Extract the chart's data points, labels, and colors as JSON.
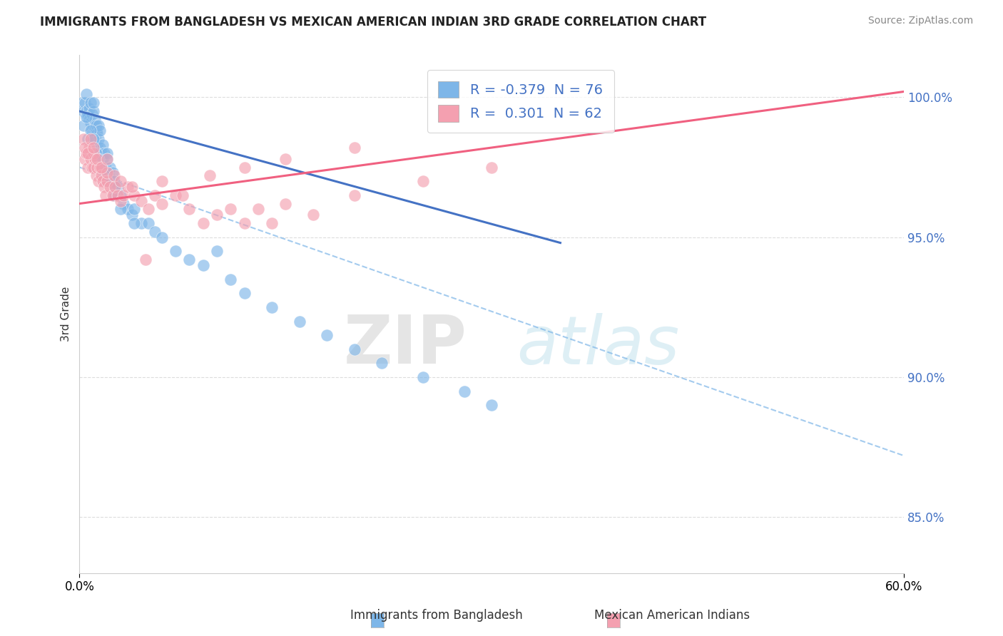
{
  "title": "IMMIGRANTS FROM BANGLADESH VS MEXICAN AMERICAN INDIAN 3RD GRADE CORRELATION CHART",
  "source": "Source: ZipAtlas.com",
  "xlabel_blue": "Immigrants from Bangladesh",
  "xlabel_pink": "Mexican American Indians",
  "ylabel": "3rd Grade",
  "watermark_zip": "ZIP",
  "watermark_atlas": "atlas",
  "xlim": [
    0.0,
    60.0
  ],
  "ylim": [
    83.0,
    101.5
  ],
  "yticks": [
    85.0,
    90.0,
    95.0,
    100.0
  ],
  "ytick_labels": [
    "85.0%",
    "90.0%",
    "95.0%",
    "100.0%"
  ],
  "xtick_labels": [
    "0.0%",
    "60.0%"
  ],
  "legend_blue_r": "-0.379",
  "legend_blue_n": "76",
  "legend_pink_r": "0.301",
  "legend_pink_n": "62",
  "blue_color": "#7EB6E8",
  "pink_color": "#F4A0B0",
  "blue_line_color": "#4472C4",
  "pink_line_color": "#F06080",
  "dashed_line_color": "#7EB6E8",
  "background_color": "#FFFFFF",
  "grid_color": "#DDDDDD",
  "blue_x": [
    0.2,
    0.3,
    0.4,
    0.5,
    0.5,
    0.6,
    0.7,
    0.7,
    0.8,
    0.8,
    0.9,
    0.9,
    1.0,
    1.0,
    1.0,
    1.1,
    1.1,
    1.2,
    1.2,
    1.3,
    1.3,
    1.4,
    1.4,
    1.5,
    1.5,
    1.6,
    1.7,
    1.7,
    1.8,
    1.9,
    2.0,
    2.0,
    2.1,
    2.2,
    2.3,
    2.4,
    2.5,
    2.6,
    2.7,
    2.8,
    3.0,
    3.2,
    3.5,
    3.8,
    4.0,
    4.5,
    5.0,
    5.5,
    6.0,
    7.0,
    8.0,
    9.0,
    10.0,
    11.0,
    12.0,
    14.0,
    16.0,
    18.0,
    20.0,
    22.0,
    25.0,
    28.0,
    30.0,
    0.3,
    0.5,
    0.6,
    0.8,
    1.0,
    1.2,
    1.4,
    1.6,
    1.8,
    2.0,
    2.5,
    3.0,
    4.0
  ],
  "blue_y": [
    99.8,
    99.5,
    99.8,
    99.5,
    100.1,
    99.3,
    99.6,
    99.2,
    99.8,
    99.1,
    98.8,
    99.4,
    99.0,
    99.5,
    99.8,
    98.5,
    99.2,
    98.8,
    99.0,
    98.3,
    98.7,
    98.5,
    99.0,
    98.2,
    98.8,
    98.0,
    97.8,
    98.3,
    98.0,
    97.5,
    98.0,
    97.8,
    97.2,
    97.5,
    97.0,
    97.3,
    97.0,
    96.8,
    96.5,
    96.8,
    96.5,
    96.2,
    96.0,
    95.8,
    96.0,
    95.5,
    95.5,
    95.2,
    95.0,
    94.5,
    94.2,
    94.0,
    94.5,
    93.5,
    93.0,
    92.5,
    92.0,
    91.5,
    91.0,
    90.5,
    90.0,
    89.5,
    89.0,
    99.0,
    99.3,
    98.5,
    98.8,
    98.5,
    98.0,
    97.8,
    97.5,
    97.2,
    97.0,
    96.5,
    96.0,
    95.5
  ],
  "pink_x": [
    0.3,
    0.4,
    0.5,
    0.6,
    0.7,
    0.8,
    0.9,
    1.0,
    1.0,
    1.1,
    1.2,
    1.3,
    1.4,
    1.5,
    1.6,
    1.7,
    1.8,
    1.9,
    2.0,
    2.0,
    2.2,
    2.4,
    2.6,
    2.8,
    3.0,
    3.2,
    3.5,
    4.0,
    4.5,
    5.0,
    5.5,
    6.0,
    7.0,
    8.0,
    9.0,
    10.0,
    11.0,
    12.0,
    13.0,
    14.0,
    15.0,
    17.0,
    20.0,
    25.0,
    30.0,
    0.4,
    0.6,
    0.8,
    1.0,
    1.3,
    1.6,
    2.0,
    2.5,
    3.0,
    3.8,
    4.8,
    6.0,
    7.5,
    9.5,
    12.0,
    15.0,
    20.0
  ],
  "pink_y": [
    98.5,
    97.8,
    98.0,
    97.5,
    98.2,
    97.8,
    97.5,
    98.0,
    97.5,
    97.8,
    97.2,
    97.5,
    97.0,
    97.5,
    97.2,
    97.0,
    96.8,
    96.5,
    97.0,
    97.3,
    96.8,
    96.5,
    96.8,
    96.5,
    96.3,
    96.5,
    96.8,
    96.5,
    96.3,
    96.0,
    96.5,
    96.2,
    96.5,
    96.0,
    95.5,
    95.8,
    96.0,
    95.5,
    96.0,
    95.5,
    96.2,
    95.8,
    96.5,
    97.0,
    97.5,
    98.2,
    98.0,
    98.5,
    98.2,
    97.8,
    97.5,
    97.8,
    97.2,
    97.0,
    96.8,
    94.2,
    97.0,
    96.5,
    97.2,
    97.5,
    97.8,
    98.2
  ],
  "blue_line_x0": 0.0,
  "blue_line_y0": 99.5,
  "blue_line_x1": 35.0,
  "blue_line_y1": 94.8,
  "pink_line_x0": 0.0,
  "pink_line_y0": 96.2,
  "pink_line_x1": 60.0,
  "pink_line_y1": 100.2,
  "dash_line_x0": 0.0,
  "dash_line_y0": 97.5,
  "dash_line_x1": 60.0,
  "dash_line_y1": 87.2
}
